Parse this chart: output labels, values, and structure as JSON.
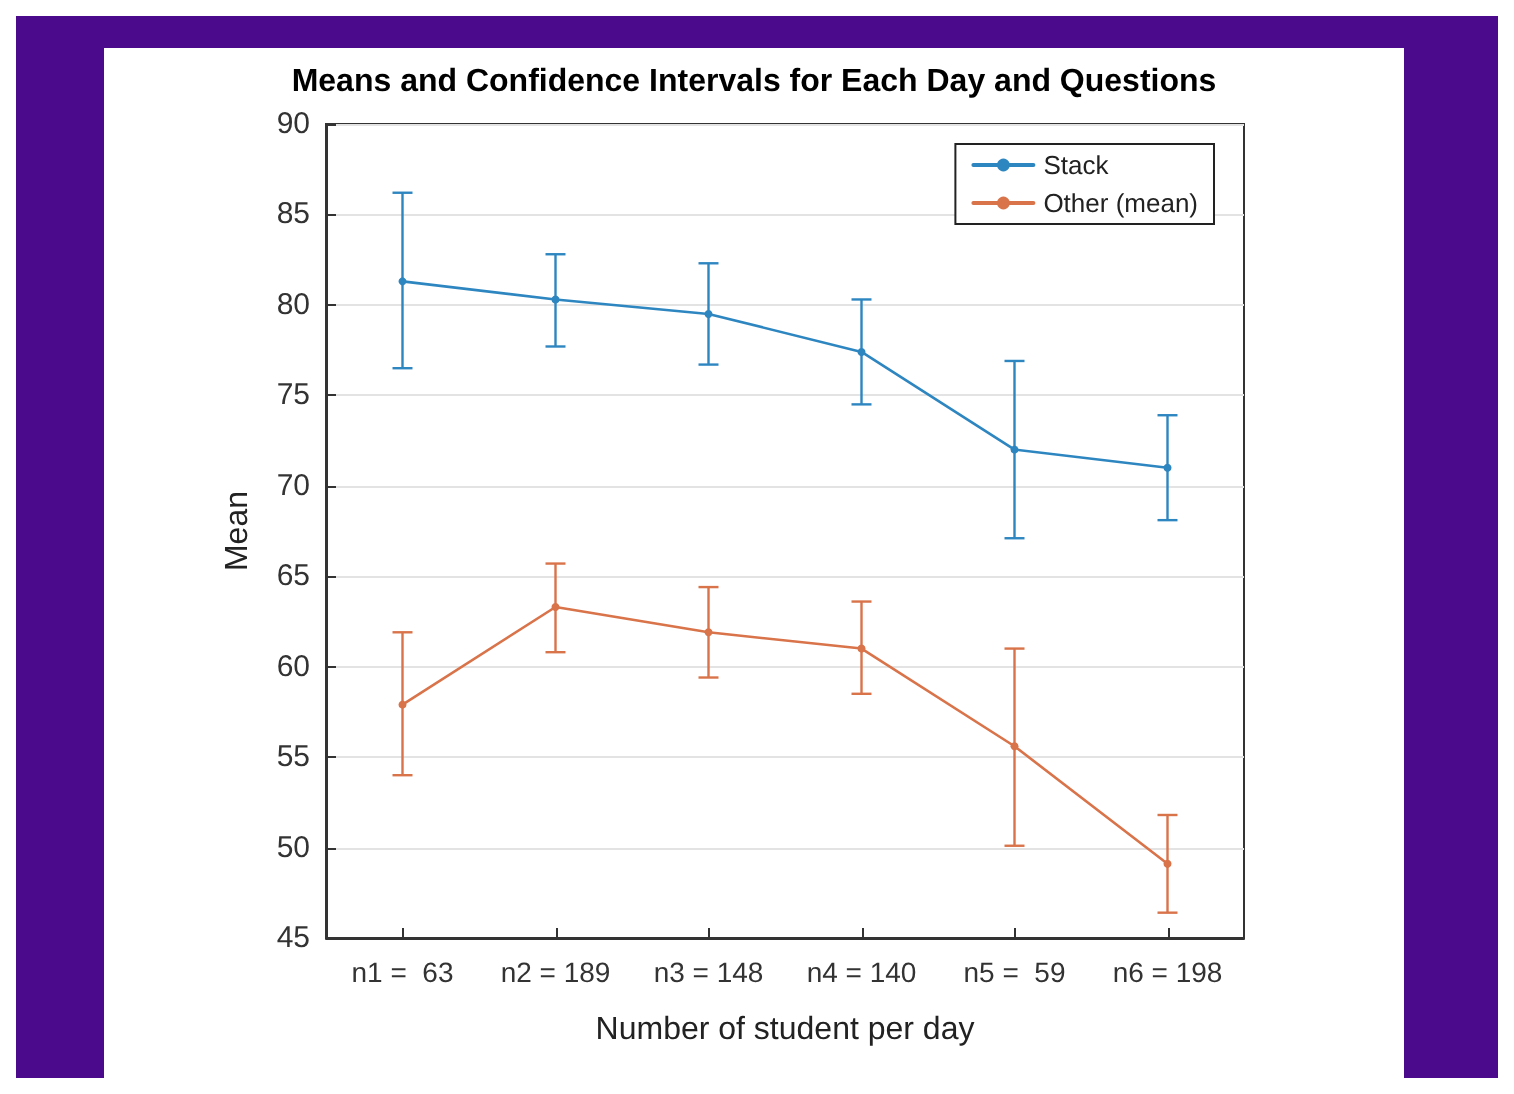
{
  "chart_data": {
    "type": "line",
    "title": "Means and Confidence Intervals for Each Day and Questions",
    "xlabel": "Number of student per day",
    "ylabel": "Mean",
    "categories": [
      "n1 =  63",
      "n2 = 189",
      "n3 = 148",
      "n4 = 140",
      "n5 =  59",
      "n6 = 198"
    ],
    "series": [
      {
        "name": "Stack",
        "color": "#2e86c1",
        "values": [
          81.3,
          80.3,
          79.5,
          77.4,
          72.0,
          71.0
        ],
        "errors": [
          [
            76.5,
            86.2
          ],
          [
            77.7,
            82.8
          ],
          [
            76.7,
            82.3
          ],
          [
            74.5,
            80.3
          ],
          [
            67.1,
            76.9
          ],
          [
            68.1,
            73.9
          ]
        ]
      },
      {
        "name": "Other (mean)",
        "color": "#d9734a",
        "values": [
          57.9,
          63.3,
          61.9,
          61.0,
          55.6,
          49.1
        ],
        "errors": [
          [
            54.0,
            61.9
          ],
          [
            60.8,
            65.7
          ],
          [
            59.4,
            64.4
          ],
          [
            58.5,
            63.6
          ],
          [
            50.1,
            61.0
          ],
          [
            46.4,
            51.8
          ]
        ]
      }
    ],
    "ylim": [
      45,
      90
    ],
    "yticks": [
      45,
      50,
      55,
      60,
      65,
      70,
      75,
      80,
      85,
      90
    ],
    "grid": "y",
    "legend": "top right",
    "marker": "circle",
    "line_style": "solid"
  }
}
